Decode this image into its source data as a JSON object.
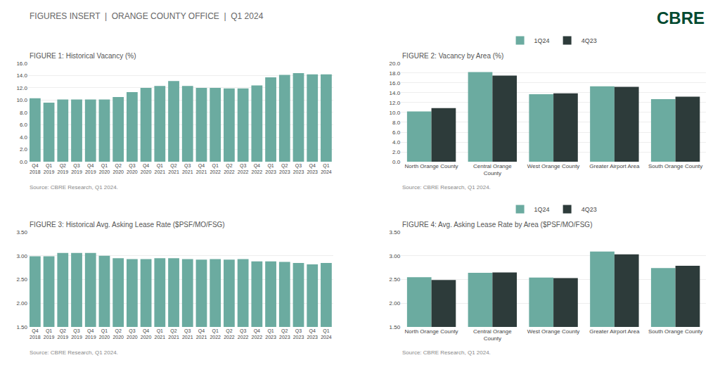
{
  "title": "FIGURES INSERT  |  ORANGE COUNTY OFFICE  |  Q1 2024",
  "annotations": [
    {
      "text": "CBRE",
      "color": "#004930"
    }
  ],
  "chart_data": [
    {
      "type": "bar",
      "title": "FIGURE 1: Historical Vacancy (%)",
      "annotations": [
        "Source: CBRE Research, Q1 2024."
      ],
      "categories": [
        "Q4\n2018",
        "Q1\n2019",
        "Q2\n2019",
        "Q3\n2019",
        "Q4\n2019",
        "Q1\n2020",
        "Q2\n2020",
        "Q3\n2020",
        "Q4\n2020",
        "Q1\n2021",
        "Q2\n2021",
        "Q3\n2021",
        "Q4\n2021",
        "Q1\n2022",
        "Q2\n2022",
        "Q3\n2022",
        "Q4\n2022",
        "Q1\n2023",
        "Q2\n2023",
        "Q3\n2023",
        "Q4\n2023",
        "Q1\n2024"
      ],
      "values": [
        10.3,
        9.6,
        10.1,
        10.1,
        10.1,
        10.1,
        10.5,
        11.3,
        12.0,
        12.3,
        13.1,
        12.3,
        12.0,
        12.0,
        11.9,
        11.9,
        12.4,
        13.7,
        14.1,
        14.4,
        14.2,
        14.2
      ],
      "color": "#6BABA0",
      "ylim": [
        0,
        16.0
      ],
      "yticks": [
        {
          "value": 0,
          "label": "0.0"
        },
        {
          "value": 2,
          "label": "2.0"
        },
        {
          "value": 4,
          "label": "4.0"
        },
        {
          "value": 6,
          "label": "6.0"
        },
        {
          "value": 8,
          "label": "8.0"
        },
        {
          "value": 10,
          "label": "10.0"
        },
        {
          "value": 12,
          "label": "12.0"
        },
        {
          "value": 14,
          "label": "14.0"
        },
        {
          "value": 16,
          "label": "16.0"
        }
      ],
      "grid": true
    },
    {
      "type": "bar",
      "title": "FIGURE 2: Vacancy by Area (%)",
      "annotations": [
        "Source: CBRE Research, Q1 2024."
      ],
      "categories": [
        "North Orange County",
        "Central Orange\nCounty",
        "West Orange County",
        "Greater Airport Area",
        "South Orange County"
      ],
      "series": [
        {
          "name": "1Q24",
          "color": "#6BABA0",
          "values": [
            10.2,
            18.2,
            13.7,
            15.3,
            12.7
          ]
        },
        {
          "name": "4Q23",
          "color": "#2D3B3A",
          "values": [
            10.9,
            17.5,
            13.9,
            15.2,
            13.2
          ]
        }
      ],
      "ylim": [
        0,
        20.0
      ],
      "yticks": [
        {
          "value": 0,
          "label": "0.0"
        },
        {
          "value": 2,
          "label": "2.0"
        },
        {
          "value": 4,
          "label": "4.0"
        },
        {
          "value": 6,
          "label": "6.0"
        },
        {
          "value": 8,
          "label": "8.0"
        },
        {
          "value": 10,
          "label": "10.0"
        },
        {
          "value": 12,
          "label": "12.0"
        },
        {
          "value": 14,
          "label": "14.0"
        },
        {
          "value": 16,
          "label": "16.0"
        },
        {
          "value": 18,
          "label": "18.0"
        },
        {
          "value": 20,
          "label": "20.0"
        }
      ],
      "grid": true,
      "legend": "top"
    },
    {
      "type": "bar",
      "title": "FIGURE 3: Historical Avg. Asking Lease Rate ($PSF/MO/FSG)",
      "annotations": [
        "Source: CBRE Research, Q1 2024."
      ],
      "categories": [
        "Q4\n2018",
        "Q1\n2019",
        "Q2\n2019",
        "Q3\n2019",
        "Q4\n2019",
        "Q1\n2020",
        "Q2\n2020",
        "Q3\n2020",
        "Q4\n2020",
        "Q1\n2021",
        "Q2\n2021",
        "Q3\n2021",
        "Q4\n2021",
        "Q1\n2022",
        "Q2\n2022",
        "Q3\n2022",
        "Q4\n2022",
        "Q1\n2023",
        "Q2\n2023",
        "Q3\n2023",
        "Q4\n2023",
        "Q1\n2024"
      ],
      "values": [
        2.99,
        2.99,
        3.06,
        3.06,
        3.06,
        3.0,
        2.95,
        2.93,
        2.93,
        2.95,
        2.95,
        2.93,
        2.92,
        2.93,
        2.92,
        2.93,
        2.88,
        2.88,
        2.87,
        2.85,
        2.82,
        2.85
      ],
      "color": "#6BABA0",
      "ylim": [
        1.5,
        3.5
      ],
      "yticks": [
        {
          "value": 1.5,
          "label": "1.50"
        },
        {
          "value": 2,
          "label": "2.00"
        },
        {
          "value": 2.5,
          "label": "2.50"
        },
        {
          "value": 3,
          "label": "3.00"
        },
        {
          "value": 3.5,
          "label": "3.50"
        }
      ],
      "grid": true
    },
    {
      "type": "bar",
      "title": "FIGURE 4: Avg. Asking Lease Rate by Area ($PSF/MO/FSG)",
      "annotations": [
        "Source: CBRE Research, Q1 2024."
      ],
      "categories": [
        "North Orange County",
        "Central Orange\nCounty",
        "West Orange County",
        "Greater Airport Area",
        "South Orange County"
      ],
      "series": [
        {
          "name": "1Q24",
          "color": "#6BABA0",
          "values": [
            2.55,
            2.64,
            2.54,
            3.09,
            2.74
          ]
        },
        {
          "name": "4Q23",
          "color": "#2D3B3A",
          "values": [
            2.49,
            2.65,
            2.53,
            3.03,
            2.79
          ]
        }
      ],
      "ylim": [
        1.5,
        3.5
      ],
      "yticks": [
        {
          "value": 1.5,
          "label": "1.50"
        },
        {
          "value": 2,
          "label": "2.00"
        },
        {
          "value": 2.5,
          "label": "2.50"
        },
        {
          "value": 3,
          "label": "3.00"
        },
        {
          "value": 3.5,
          "label": "3.50"
        }
      ],
      "grid": true,
      "legend": "top"
    }
  ]
}
